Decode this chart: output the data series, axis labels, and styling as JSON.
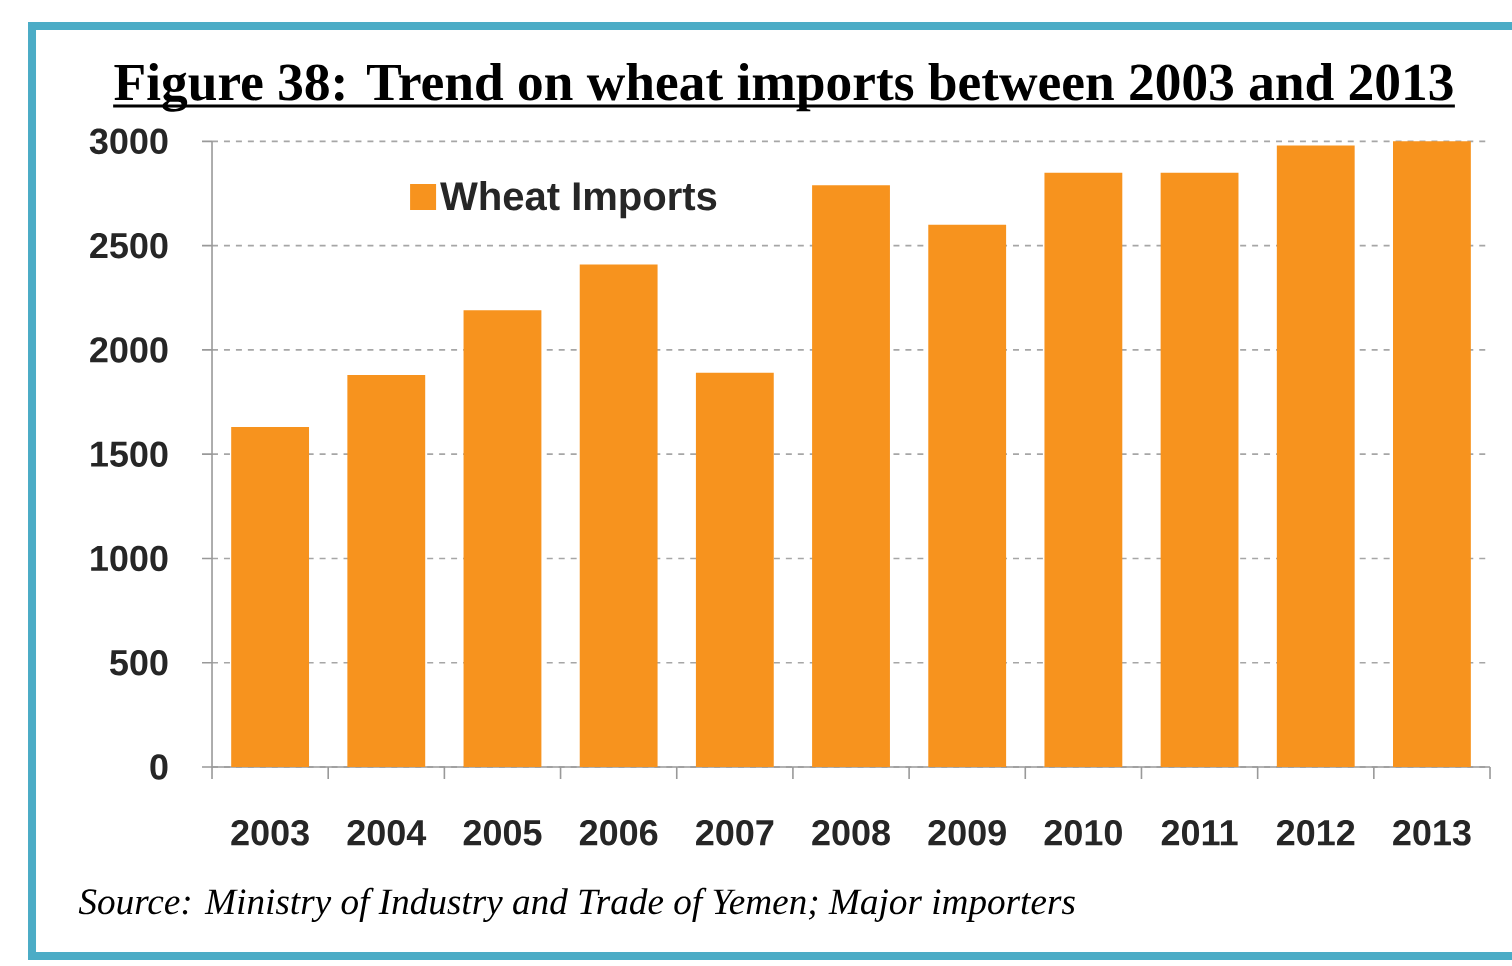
{
  "chart_data": {
    "type": "bar",
    "title": "Figure 38: Trend on wheat imports between 2003 and 2013",
    "categories": [
      "2003",
      "2004",
      "2005",
      "2006",
      "2007",
      "2008",
      "2009",
      "2010",
      "2011",
      "2012",
      "2013"
    ],
    "series": [
      {
        "name": "Wheat Imports",
        "color": "#f7931e",
        "values": [
          1630,
          1880,
          2190,
          2410,
          1890,
          2790,
          2600,
          2850,
          2850,
          2980,
          3000
        ]
      }
    ],
    "ylim": [
      0,
      3000
    ],
    "yticks": [
      0,
      500,
      1000,
      1500,
      2000,
      2500,
      3000
    ],
    "grid": "y",
    "legend": "top left",
    "annotations": [
      "Source: Ministry of Industry and Trade of Yemen; Major importers"
    ]
  }
}
